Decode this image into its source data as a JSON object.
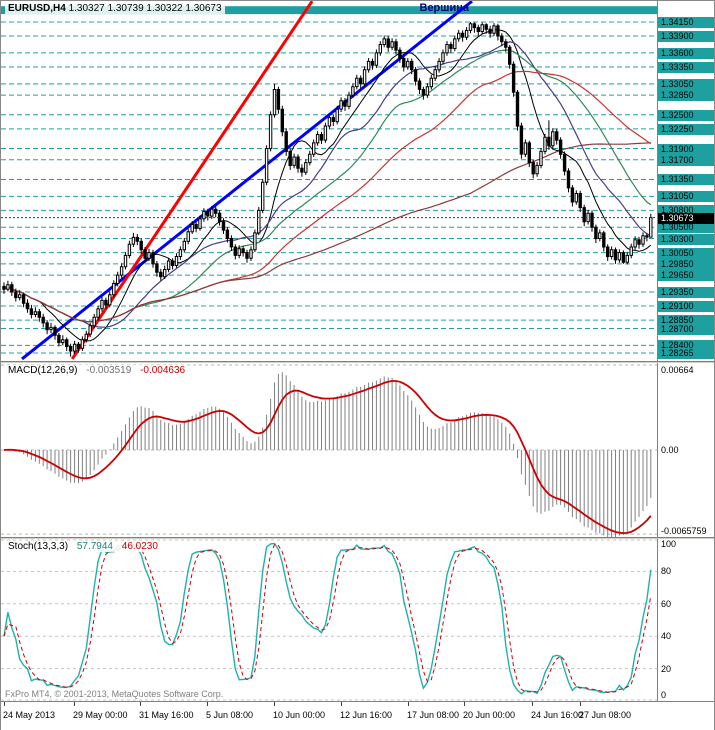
{
  "header": {
    "symbol_period": "EURUSD,H4",
    "ohlc": "1.30327 1.30739 1.30322 1.30673"
  },
  "annotation": {
    "text": "Вершина",
    "color": "#000080",
    "anchor_index": 106
  },
  "footer": {
    "copyright": "FxPro MT4, © 2001-2013, MetaQuotes Software Corp."
  },
  "chart_data": {
    "type": "candlestick",
    "title": "EURUSD,H4",
    "symbol": "EURUSD",
    "timeframe": "H4",
    "ohlc_header": {
      "open": "1.30327",
      "high": "1.30739",
      "low": "1.30322",
      "close": "1.30673"
    },
    "current_price": 1.30673,
    "price_axis": {
      "top": 1.34523,
      "bottom": 1.28123
    },
    "level_color": "#1FA0A0",
    "level_lines": [
      1.3415,
      1.339,
      1.336,
      1.3335,
      1.3305,
      1.3285,
      1.325,
      1.3225,
      1.319,
      1.317,
      1.3135,
      1.3105,
      1.308,
      1.305,
      1.303,
      1.3005,
      1.2985,
      1.2965,
      1.2935,
      1.291,
      1.2885,
      1.287,
      1.284,
      1.28265
    ],
    "band": {
      "top": 1.3443,
      "bottom": 1.3429,
      "color": "#1FA0A0"
    },
    "trendlines": [
      {
        "name": "blue-uptrend",
        "color": "#0000FF",
        "width": 3,
        "i1": 4.6,
        "p1": 1.2816,
        "i2": 119.4,
        "p2": 1.3452
      },
      {
        "name": "red-uptrend",
        "color": "#FF0000",
        "width": 3,
        "i1": 17.4,
        "p1": 1.2816,
        "i2": 78.6,
        "p2": 1.3452
      }
    ],
    "moving_averages": [
      {
        "period": 10,
        "color": "#000000",
        "width": 1
      },
      {
        "period": 21,
        "color": "#483D8B",
        "width": 1.2
      },
      {
        "period": 34,
        "color": "#2E8B57",
        "width": 1.2
      },
      {
        "period": 55,
        "color": "#CC3333",
        "width": 1.2
      },
      {
        "period": 120,
        "color": "#8B3A3A",
        "width": 1.2
      }
    ],
    "candles": [
      [
        1.2945,
        1.2952,
        1.2932,
        1.294
      ],
      [
        1.294,
        1.2955,
        1.2936,
        1.2948
      ],
      [
        1.2948,
        1.2953,
        1.2928,
        1.2935
      ],
      [
        1.2935,
        1.2941,
        1.2918,
        1.2925
      ],
      [
        1.2925,
        1.2938,
        1.292,
        1.293
      ],
      [
        1.293,
        1.2934,
        1.2908,
        1.2915
      ],
      [
        1.2915,
        1.2922,
        1.2898,
        1.2905
      ],
      [
        1.2905,
        1.2912,
        1.2888,
        1.2895
      ],
      [
        1.2895,
        1.2908,
        1.289,
        1.29
      ],
      [
        1.29,
        1.2905,
        1.2882,
        1.289
      ],
      [
        1.289,
        1.2896,
        1.2872,
        1.288
      ],
      [
        1.288,
        1.2885,
        1.286,
        1.2868
      ],
      [
        1.2868,
        1.288,
        1.2862,
        1.2872
      ],
      [
        1.2872,
        1.2876,
        1.285,
        1.2858
      ],
      [
        1.2858,
        1.2862,
        1.2838,
        1.2845
      ],
      [
        1.2845,
        1.2858,
        1.284,
        1.285
      ],
      [
        1.285,
        1.2854,
        1.283,
        1.2838
      ],
      [
        1.2838,
        1.2843,
        1.282,
        1.283
      ],
      [
        1.283,
        1.2848,
        1.2825,
        1.2842
      ],
      [
        1.2842,
        1.2846,
        1.2827,
        1.2835
      ],
      [
        1.2835,
        1.2856,
        1.283,
        1.285
      ],
      [
        1.285,
        1.2866,
        1.2845,
        1.286
      ],
      [
        1.286,
        1.288,
        1.2855,
        1.2875
      ],
      [
        1.2875,
        1.2896,
        1.287,
        1.289
      ],
      [
        1.289,
        1.291,
        1.2884,
        1.2905
      ],
      [
        1.2905,
        1.2926,
        1.29,
        1.292
      ],
      [
        1.292,
        1.2925,
        1.2905,
        1.2912
      ],
      [
        1.2912,
        1.2936,
        1.2908,
        1.293
      ],
      [
        1.293,
        1.2956,
        1.2925,
        1.295
      ],
      [
        1.295,
        1.2971,
        1.2945,
        1.2965
      ],
      [
        1.2965,
        1.2986,
        1.296,
        1.298
      ],
      [
        1.298,
        1.3006,
        1.2975,
        1.3
      ],
      [
        1.3,
        1.3026,
        1.2995,
        1.302
      ],
      [
        1.302,
        1.304,
        1.3015,
        1.3032
      ],
      [
        1.3032,
        1.3038,
        1.3018,
        1.3025
      ],
      [
        1.3025,
        1.303,
        1.3003,
        1.301
      ],
      [
        1.301,
        1.3015,
        1.2988,
        1.2995
      ],
      [
        1.2995,
        1.3012,
        1.299,
        1.3005
      ],
      [
        1.3005,
        1.301,
        1.2978,
        1.2985
      ],
      [
        1.2985,
        1.299,
        1.2962,
        1.297
      ],
      [
        1.297,
        1.2976,
        1.2955,
        1.2962
      ],
      [
        1.2962,
        1.2982,
        1.2958,
        1.2975
      ],
      [
        1.2975,
        1.2996,
        1.297,
        1.299
      ],
      [
        1.299,
        1.2995,
        1.2975,
        1.2982
      ],
      [
        1.2982,
        1.3004,
        1.2978,
        1.2998
      ],
      [
        1.2998,
        1.3016,
        1.2992,
        1.301
      ],
      [
        1.301,
        1.3031,
        1.3005,
        1.3025
      ],
      [
        1.3025,
        1.3048,
        1.302,
        1.3042
      ],
      [
        1.3042,
        1.3061,
        1.3038,
        1.3055
      ],
      [
        1.3055,
        1.306,
        1.3041,
        1.3048
      ],
      [
        1.3048,
        1.3071,
        1.3044,
        1.3065
      ],
      [
        1.3065,
        1.3084,
        1.306,
        1.3078
      ],
      [
        1.3078,
        1.3083,
        1.3062,
        1.307
      ],
      [
        1.307,
        1.3088,
        1.3065,
        1.3082
      ],
      [
        1.3082,
        1.3087,
        1.3068,
        1.3075
      ],
      [
        1.3075,
        1.308,
        1.3053,
        1.306
      ],
      [
        1.306,
        1.3066,
        1.3038,
        1.3045
      ],
      [
        1.3045,
        1.305,
        1.3023,
        1.303
      ],
      [
        1.303,
        1.3036,
        1.3008,
        1.3015
      ],
      [
        1.3015,
        1.302,
        1.2993,
        1.3
      ],
      [
        1.3,
        1.3018,
        1.2995,
        1.3012
      ],
      [
        1.3012,
        1.3017,
        1.2998,
        1.3005
      ],
      [
        1.3005,
        1.301,
        1.2987,
        1.2995
      ],
      [
        1.2995,
        1.3016,
        1.299,
        1.301
      ],
      [
        1.301,
        1.3046,
        1.3006,
        1.304
      ],
      [
        1.304,
        1.3086,
        1.3036,
        1.308
      ],
      [
        1.308,
        1.3136,
        1.3075,
        1.313
      ],
      [
        1.313,
        1.3196,
        1.3125,
        1.319
      ],
      [
        1.319,
        1.3256,
        1.3185,
        1.325
      ],
      [
        1.325,
        1.3305,
        1.3245,
        1.3295
      ],
      [
        1.3295,
        1.33,
        1.3252,
        1.326
      ],
      [
        1.326,
        1.3266,
        1.3212,
        1.322
      ],
      [
        1.322,
        1.3226,
        1.3177,
        1.3185
      ],
      [
        1.3185,
        1.319,
        1.3152,
        1.316
      ],
      [
        1.316,
        1.3181,
        1.3155,
        1.3175
      ],
      [
        1.3175,
        1.318,
        1.3147,
        1.3155
      ],
      [
        1.3155,
        1.3162,
        1.314,
        1.3148
      ],
      [
        1.3148,
        1.3171,
        1.3143,
        1.3165
      ],
      [
        1.3165,
        1.3186,
        1.316,
        1.318
      ],
      [
        1.318,
        1.3206,
        1.3175,
        1.32
      ],
      [
        1.32,
        1.3221,
        1.3195,
        1.3215
      ],
      [
        1.3215,
        1.322,
        1.3198,
        1.3205
      ],
      [
        1.3205,
        1.3236,
        1.32,
        1.323
      ],
      [
        1.323,
        1.3251,
        1.3225,
        1.3245
      ],
      [
        1.3245,
        1.325,
        1.323,
        1.3238
      ],
      [
        1.3238,
        1.3266,
        1.3233,
        1.326
      ],
      [
        1.326,
        1.3281,
        1.3255,
        1.3275
      ],
      [
        1.3275,
        1.328,
        1.3257,
        1.3265
      ],
      [
        1.3265,
        1.3291,
        1.326,
        1.3285
      ],
      [
        1.3285,
        1.3306,
        1.328,
        1.33
      ],
      [
        1.33,
        1.3321,
        1.3295,
        1.3315
      ],
      [
        1.3315,
        1.332,
        1.3297,
        1.3305
      ],
      [
        1.3305,
        1.3336,
        1.33,
        1.333
      ],
      [
        1.333,
        1.3351,
        1.3325,
        1.3345
      ],
      [
        1.3345,
        1.335,
        1.333,
        1.3338
      ],
      [
        1.3338,
        1.3366,
        1.3333,
        1.336
      ],
      [
        1.336,
        1.3381,
        1.3355,
        1.3375
      ],
      [
        1.3375,
        1.3391,
        1.337,
        1.3385
      ],
      [
        1.3385,
        1.339,
        1.3362,
        1.337
      ],
      [
        1.337,
        1.3386,
        1.3365,
        1.338
      ],
      [
        1.338,
        1.3385,
        1.3357,
        1.3365
      ],
      [
        1.3365,
        1.337,
        1.3342,
        1.335
      ],
      [
        1.335,
        1.3355,
        1.3327,
        1.3335
      ],
      [
        1.3335,
        1.3351,
        1.333,
        1.3345
      ],
      [
        1.3345,
        1.335,
        1.3322,
        1.333
      ],
      [
        1.333,
        1.3335,
        1.3302,
        1.331
      ],
      [
        1.331,
        1.3315,
        1.3287,
        1.3295
      ],
      [
        1.3295,
        1.33,
        1.3277,
        1.3285
      ],
      [
        1.3285,
        1.3306,
        1.328,
        1.33
      ],
      [
        1.33,
        1.3321,
        1.3295,
        1.3315
      ],
      [
        1.3315,
        1.3336,
        1.331,
        1.333
      ],
      [
        1.333,
        1.3351,
        1.3325,
        1.3345
      ],
      [
        1.3345,
        1.3366,
        1.334,
        1.336
      ],
      [
        1.336,
        1.3381,
        1.3355,
        1.3375
      ],
      [
        1.3375,
        1.338,
        1.336,
        1.3368
      ],
      [
        1.3368,
        1.3391,
        1.3363,
        1.3385
      ],
      [
        1.3385,
        1.3401,
        1.338,
        1.3395
      ],
      [
        1.3395,
        1.34,
        1.338,
        1.3388
      ],
      [
        1.3388,
        1.3406,
        1.3383,
        1.34
      ],
      [
        1.34,
        1.3415,
        1.3395,
        1.3412
      ],
      [
        1.3412,
        1.3414,
        1.3396,
        1.3405
      ],
      [
        1.3405,
        1.341,
        1.339,
        1.3398
      ],
      [
        1.3398,
        1.3414,
        1.3393,
        1.341
      ],
      [
        1.341,
        1.3413,
        1.3394,
        1.3402
      ],
      [
        1.3402,
        1.3408,
        1.3387,
        1.3395
      ],
      [
        1.3395,
        1.3413,
        1.339,
        1.3408
      ],
      [
        1.3408,
        1.3412,
        1.3382,
        1.339
      ],
      [
        1.339,
        1.3395,
        1.3372,
        1.338
      ],
      [
        1.338,
        1.3385,
        1.3362,
        1.337
      ],
      [
        1.337,
        1.3374,
        1.3332,
        1.334
      ],
      [
        1.334,
        1.3345,
        1.3282,
        1.329
      ],
      [
        1.329,
        1.3294,
        1.3222,
        1.323
      ],
      [
        1.323,
        1.3236,
        1.3172,
        1.318
      ],
      [
        1.318,
        1.3206,
        1.3175,
        1.32
      ],
      [
        1.32,
        1.3204,
        1.3157,
        1.3165
      ],
      [
        1.3165,
        1.317,
        1.3137,
        1.3145
      ],
      [
        1.3145,
        1.3166,
        1.314,
        1.316
      ],
      [
        1.316,
        1.3191,
        1.3155,
        1.3185
      ],
      [
        1.3185,
        1.3216,
        1.318,
        1.321
      ],
      [
        1.321,
        1.324,
        1.3188,
        1.3195
      ],
      [
        1.3195,
        1.3226,
        1.319,
        1.322
      ],
      [
        1.322,
        1.3225,
        1.3197,
        1.3205
      ],
      [
        1.3205,
        1.321,
        1.3172,
        1.318
      ],
      [
        1.318,
        1.3185,
        1.3142,
        1.315
      ],
      [
        1.315,
        1.3155,
        1.3112,
        1.312
      ],
      [
        1.312,
        1.3125,
        1.3087,
        1.3095
      ],
      [
        1.3095,
        1.3116,
        1.309,
        1.311
      ],
      [
        1.311,
        1.3115,
        1.3077,
        1.3085
      ],
      [
        1.3085,
        1.309,
        1.3052,
        1.306
      ],
      [
        1.306,
        1.3081,
        1.3055,
        1.3075
      ],
      [
        1.3075,
        1.308,
        1.3042,
        1.305
      ],
      [
        1.305,
        1.3055,
        1.3022,
        1.303
      ],
      [
        1.303,
        1.3046,
        1.3025,
        1.304
      ],
      [
        1.304,
        1.3044,
        1.3007,
        1.3015
      ],
      [
        1.3015,
        1.302,
        1.299,
        1.2998
      ],
      [
        1.2998,
        1.3016,
        1.2993,
        1.301
      ],
      [
        1.301,
        1.3014,
        1.2985,
        1.2992
      ],
      [
        1.2992,
        1.3011,
        1.2987,
        1.3005
      ],
      [
        1.3005,
        1.3009,
        1.2985,
        1.2988
      ],
      [
        1.2988,
        1.3006,
        1.2984,
        1.3
      ],
      [
        1.3,
        1.3021,
        1.2995,
        1.3015
      ],
      [
        1.3015,
        1.3034,
        1.301,
        1.3028
      ],
      [
        1.3028,
        1.3033,
        1.3012,
        1.302
      ],
      [
        1.302,
        1.3041,
        1.3015,
        1.3035
      ],
      [
        1.3035,
        1.304,
        1.3025,
        1.30327
      ],
      [
        1.30327,
        1.30739,
        1.30322,
        1.30673
      ]
    ],
    "x_axis": {
      "labels": [
        "24 May 2013",
        "29 May 00:00",
        "31 May 16:00",
        "5 Jun 08:00",
        "10 Jun 00:00",
        "12 Jun 16:00",
        "17 Jun 08:00",
        "20 Jun 00:00",
        "24 Jun 16:00",
        "27 Jun 08:00"
      ],
      "positions": [
        2,
        72,
        138,
        205,
        272,
        339,
        406,
        462,
        530,
        578
      ]
    },
    "indicators": {
      "macd": {
        "label": "MACD(12,26,9)",
        "value_main": "-0.003519",
        "value_signal": "-0.004636",
        "fast": 12,
        "slow": 26,
        "signal": 9,
        "range": 0.0068,
        "scale": [
          {
            "label": "0.00664",
            "value": 0.00664
          },
          {
            "label": "0.00",
            "value": 0
          },
          {
            "label": "-0.0065759",
            "value": -0.0065759
          }
        ],
        "histogram_color": "#808080",
        "signal_color": "#CC0000"
      },
      "stoch": {
        "label": "Stoch(13,3,3)",
        "value_k": "57.7944",
        "value_d": "46.0230",
        "k_period": 13,
        "slowing": 3,
        "d_period": 3,
        "scale": [
          100,
          80,
          60,
          40,
          20,
          0
        ],
        "k_color": "#20B2AA",
        "d_color": "#CC0000"
      }
    }
  }
}
